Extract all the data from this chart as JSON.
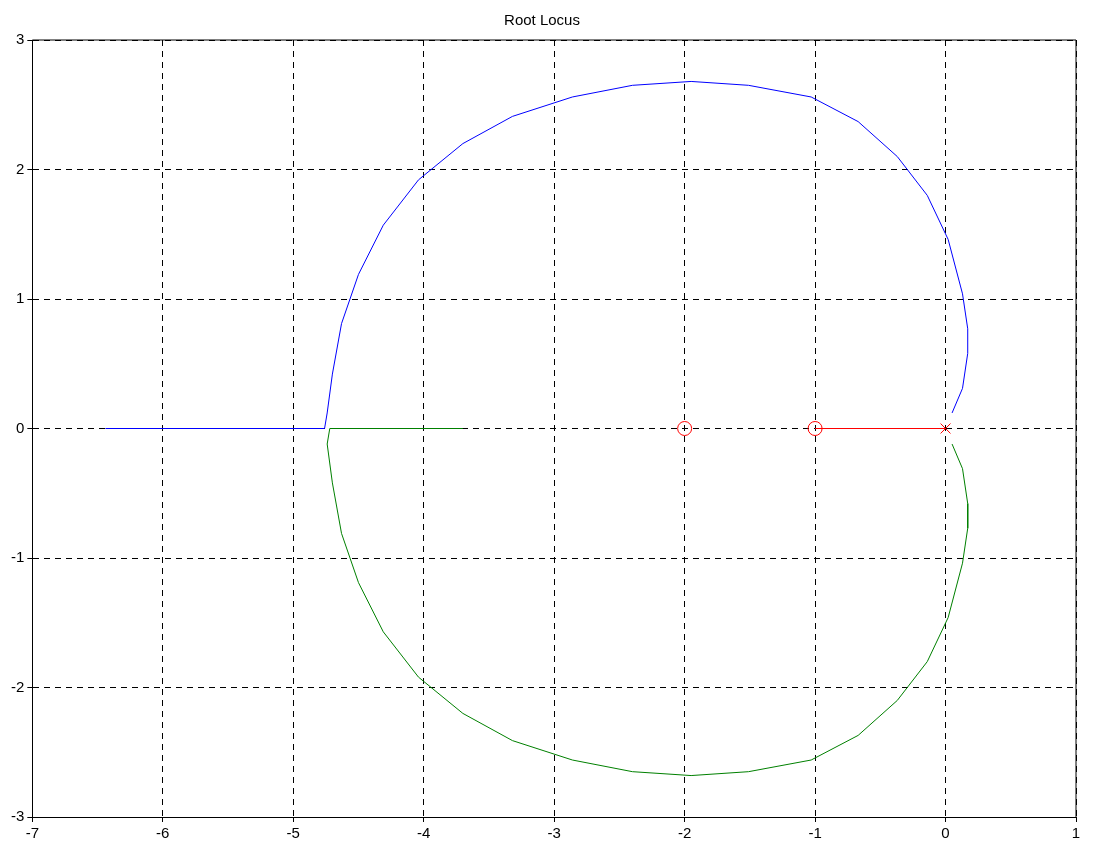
{
  "chart_data": {
    "type": "line",
    "title": "Root Locus",
    "xlim": [
      -7,
      1
    ],
    "ylim": [
      -3,
      3
    ],
    "xticks": [
      -7,
      -6,
      -5,
      -4,
      -3,
      -2,
      -1,
      0,
      1
    ],
    "yticks": [
      -3,
      -2,
      -1,
      0,
      1,
      2,
      3
    ],
    "grid": true,
    "legend": false,
    "marker": "none",
    "series": [
      {
        "type": "line",
        "color": "#0000ff",
        "x": [
          0.05,
          0.13,
          0.17,
          0.17,
          0.13,
          0.02,
          -0.14,
          -0.37,
          -0.67,
          -1.03,
          -1.51,
          -1.95,
          -2.4,
          -2.86,
          -3.32,
          -3.7,
          -4.04,
          -4.31,
          -4.5,
          -4.63,
          -4.7,
          -4.74,
          -4.76,
          -6.44
        ],
        "values": [
          0.12,
          0.31,
          0.58,
          0.77,
          1.04,
          1.46,
          1.8,
          2.1,
          2.37,
          2.56,
          2.65,
          2.68,
          2.65,
          2.56,
          2.41,
          2.2,
          1.92,
          1.57,
          1.19,
          0.81,
          0.42,
          0.12,
          0,
          0
        ]
      },
      {
        "type": "line",
        "color": "#008000",
        "x": [
          0.05,
          0.13,
          0.17,
          0.17,
          0.13,
          0.02,
          -0.14,
          -0.37,
          -0.67,
          -1.03,
          -1.51,
          -1.95,
          -2.4,
          -2.86,
          -3.32,
          -3.7,
          -4.04,
          -4.31,
          -4.5,
          -4.63,
          -4.7,
          -4.74,
          -4.72,
          -3.7
        ],
        "values": [
          -0.12,
          -0.31,
          -0.58,
          -0.77,
          -1.04,
          -1.46,
          -1.8,
          -2.1,
          -2.37,
          -2.56,
          -2.65,
          -2.68,
          -2.65,
          -2.56,
          -2.41,
          -2.2,
          -1.92,
          -1.57,
          -1.19,
          -0.81,
          -0.42,
          -0.12,
          0,
          0
        ]
      },
      {
        "type": "line",
        "color": "#ff0000",
        "x": [
          0,
          -1
        ],
        "values": [
          0,
          0
        ]
      },
      {
        "type": "scatter",
        "color": "#ff0000",
        "marker": "circle",
        "x": [
          -1,
          -2
        ],
        "values": [
          0,
          0
        ]
      },
      {
        "type": "scatter",
        "color": "#ff0000",
        "marker": "cross",
        "x": [
          0
        ],
        "values": [
          0
        ]
      }
    ]
  }
}
